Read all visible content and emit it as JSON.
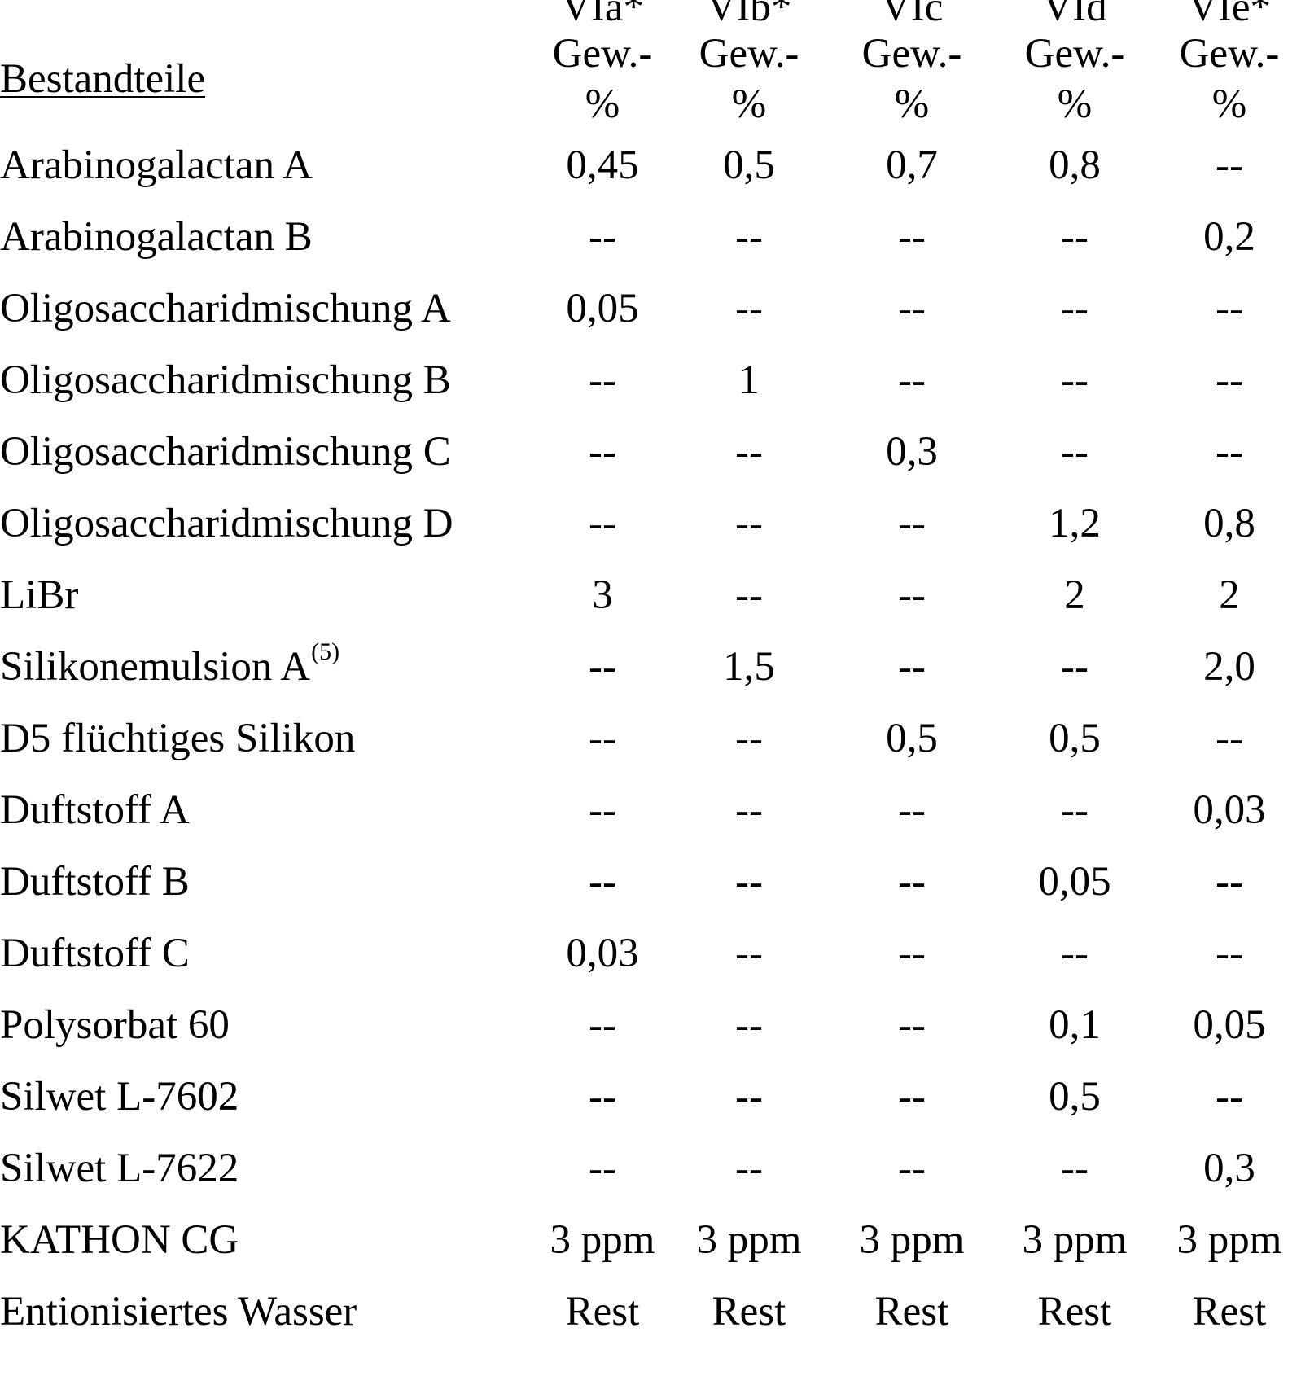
{
  "table": {
    "column_codes": [
      "VIa*",
      "VIb*",
      "VIc",
      "VId",
      "VIe*"
    ],
    "header_label": "Bestandteile",
    "unit_line1": "Gew.-",
    "unit_line2": "%",
    "rows": [
      {
        "label": "Arabinogalactan A",
        "values": [
          "0,45",
          "0,5",
          "0,7",
          "0,8",
          "--"
        ]
      },
      {
        "label": "Arabinogalactan B",
        "values": [
          "--",
          "--",
          "--",
          "--",
          "0,2"
        ]
      },
      {
        "label": "Oligosaccharidmischung A",
        "values": [
          "0,05",
          "--",
          "--",
          "--",
          "--"
        ]
      },
      {
        "label": "Oligosaccharidmischung B",
        "values": [
          "--",
          "1",
          "--",
          "--",
          "--"
        ]
      },
      {
        "label": "Oligosaccharidmischung C",
        "values": [
          "--",
          "--",
          "0,3",
          "--",
          "--"
        ]
      },
      {
        "label": "Oligosaccharidmischung D",
        "values": [
          "--",
          "--",
          "--",
          "1,2",
          "0,8"
        ]
      },
      {
        "label": "LiBr",
        "values": [
          "3",
          "--",
          "--",
          "2",
          "2"
        ]
      },
      {
        "label": "Silikonemulsion A",
        "footnote": "(5)",
        "values": [
          "--",
          "1,5",
          "--",
          "--",
          "2,0"
        ]
      },
      {
        "label": "D5 flüchtiges Silikon",
        "values": [
          "--",
          "--",
          "0,5",
          "0,5",
          "--"
        ]
      },
      {
        "label": "Duftstoff A",
        "values": [
          "--",
          "--",
          "--",
          "--",
          "0,03"
        ]
      },
      {
        "label": "Duftstoff B",
        "values": [
          "--",
          "--",
          "--",
          "0,05",
          "--"
        ]
      },
      {
        "label": "Duftstoff C",
        "values": [
          "0,03",
          "--",
          "--",
          "--",
          "--"
        ]
      },
      {
        "label": "Polysorbat 60",
        "values": [
          "--",
          "--",
          "--",
          "0,1",
          "0,05"
        ]
      },
      {
        "label": "Silwet L-7602",
        "values": [
          "--",
          "--",
          "--",
          "0,5",
          "--"
        ]
      },
      {
        "label": "Silwet L-7622",
        "values": [
          "--",
          "--",
          "--",
          "--",
          "0,3"
        ]
      },
      {
        "label": "KATHON CG",
        "values": [
          "3 ppm",
          "3 ppm",
          "3 ppm",
          "3 ppm",
          "3 ppm"
        ]
      },
      {
        "label": "Entionisiertes Wasser",
        "values": [
          "Rest",
          "Rest",
          "Rest",
          "Rest",
          "Rest"
        ]
      }
    ]
  }
}
